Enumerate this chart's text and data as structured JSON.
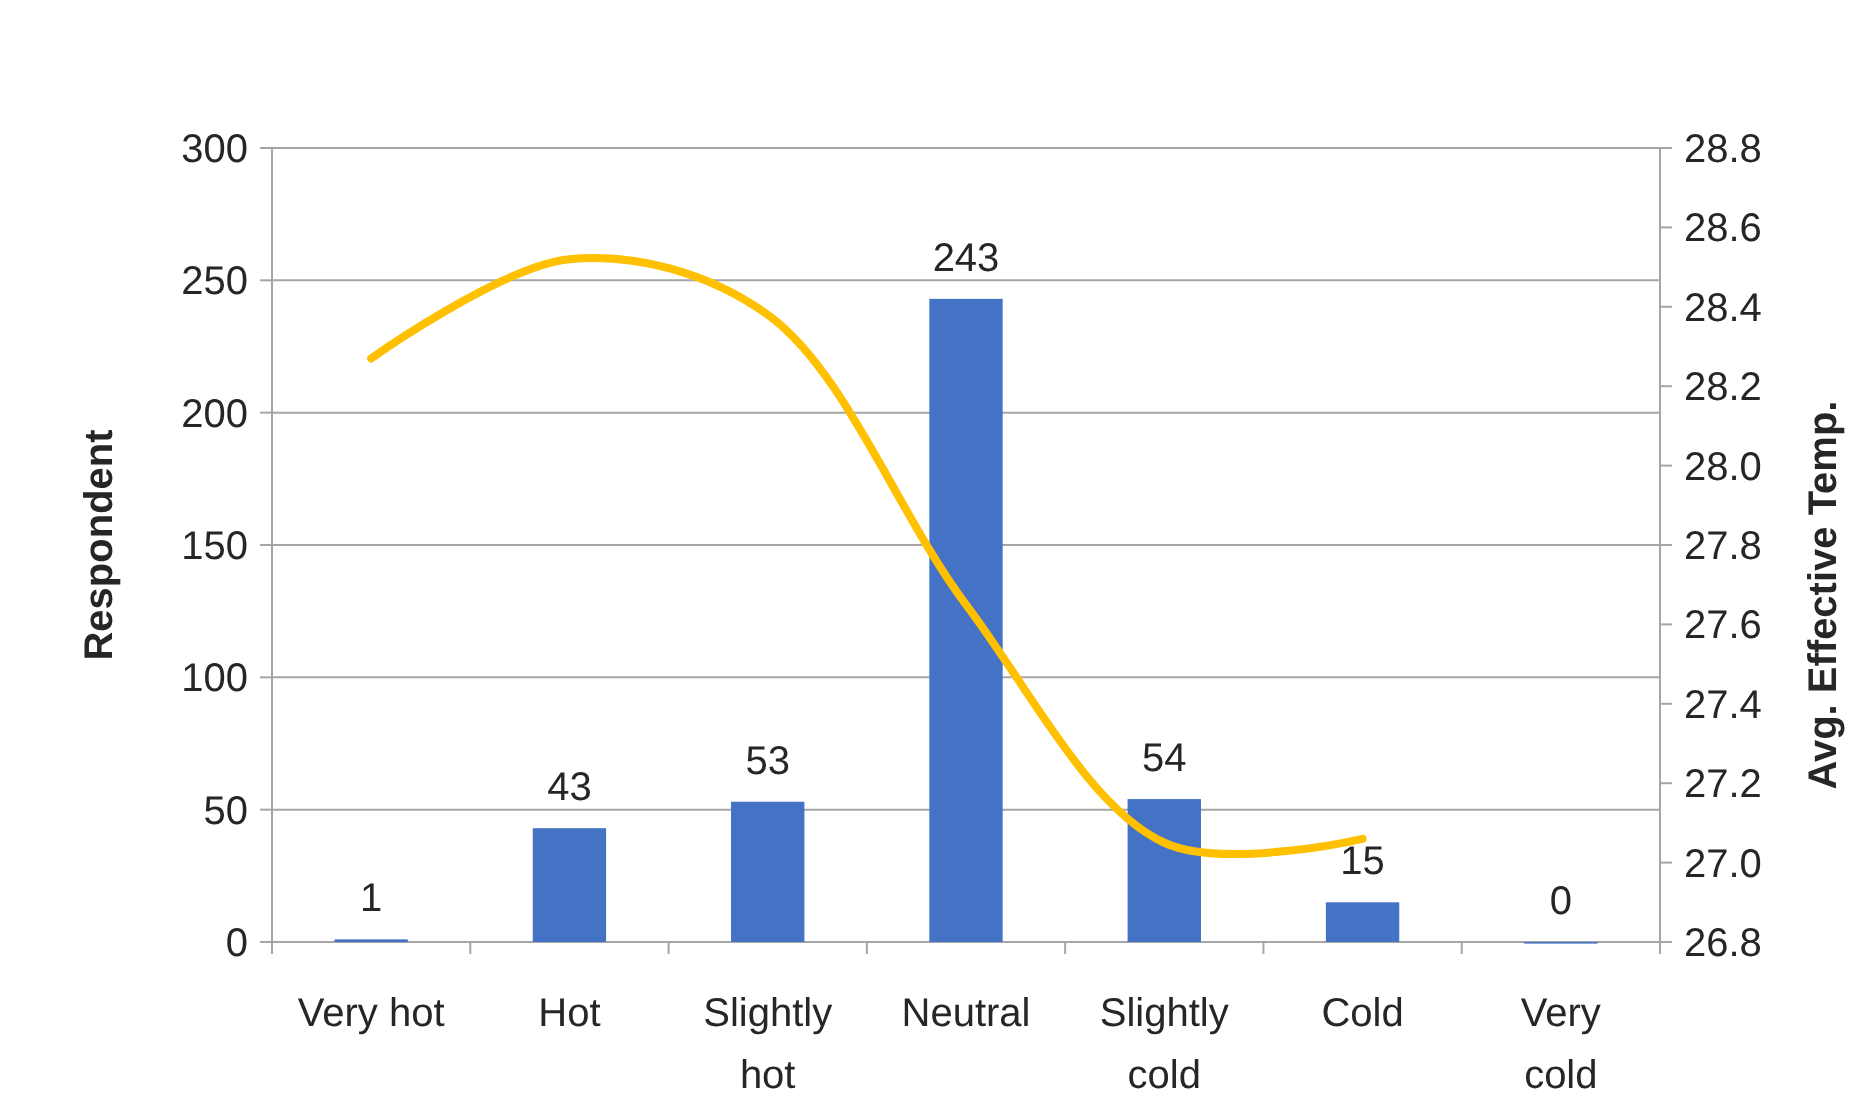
{
  "chart_data": {
    "type": "bar",
    "categories": [
      "Very hot",
      "Hot",
      "Slightly hot",
      "Neutral",
      "Slightly cold",
      "Cold",
      "Very cold"
    ],
    "ylabel": "Respondent",
    "y2label": "Avg. Effective Temp.",
    "series": [
      {
        "color": "#4472c4",
        "values": [
          1,
          43,
          53,
          243,
          54,
          15,
          0
        ],
        "value_labels": [
          "1",
          "43",
          "53",
          "243",
          "54",
          "15",
          "0"
        ]
      },
      {
        "type": "line",
        "axis": "y2",
        "color": "#ffc000",
        "values": [
          28.27,
          28.52,
          28.38,
          27.65,
          27.05,
          27.06,
          null
        ]
      }
    ],
    "ylim": [
      0,
      300
    ],
    "yticks": [
      0,
      50,
      100,
      150,
      200,
      250,
      300
    ],
    "y2lim": [
      26.8,
      28.8
    ],
    "y2ticks": [
      {
        "value": 26.8,
        "label": "26.8"
      },
      {
        "value": 27,
        "label": "27.0"
      },
      {
        "value": 27.2,
        "label": "27.2"
      },
      {
        "value": 27.4,
        "label": "27.4"
      },
      {
        "value": 27.6,
        "label": "27.6"
      },
      {
        "value": 27.8,
        "label": "27.8"
      },
      {
        "value": 28,
        "label": "28.0"
      },
      {
        "value": 28.2,
        "label": "28.2"
      },
      {
        "value": 28.4,
        "label": "28.4"
      },
      {
        "value": 28.6,
        "label": "28.6"
      },
      {
        "value": 28.8,
        "label": "28.8"
      }
    ],
    "grid": "y",
    "marker": "none",
    "line_style": "solid"
  }
}
